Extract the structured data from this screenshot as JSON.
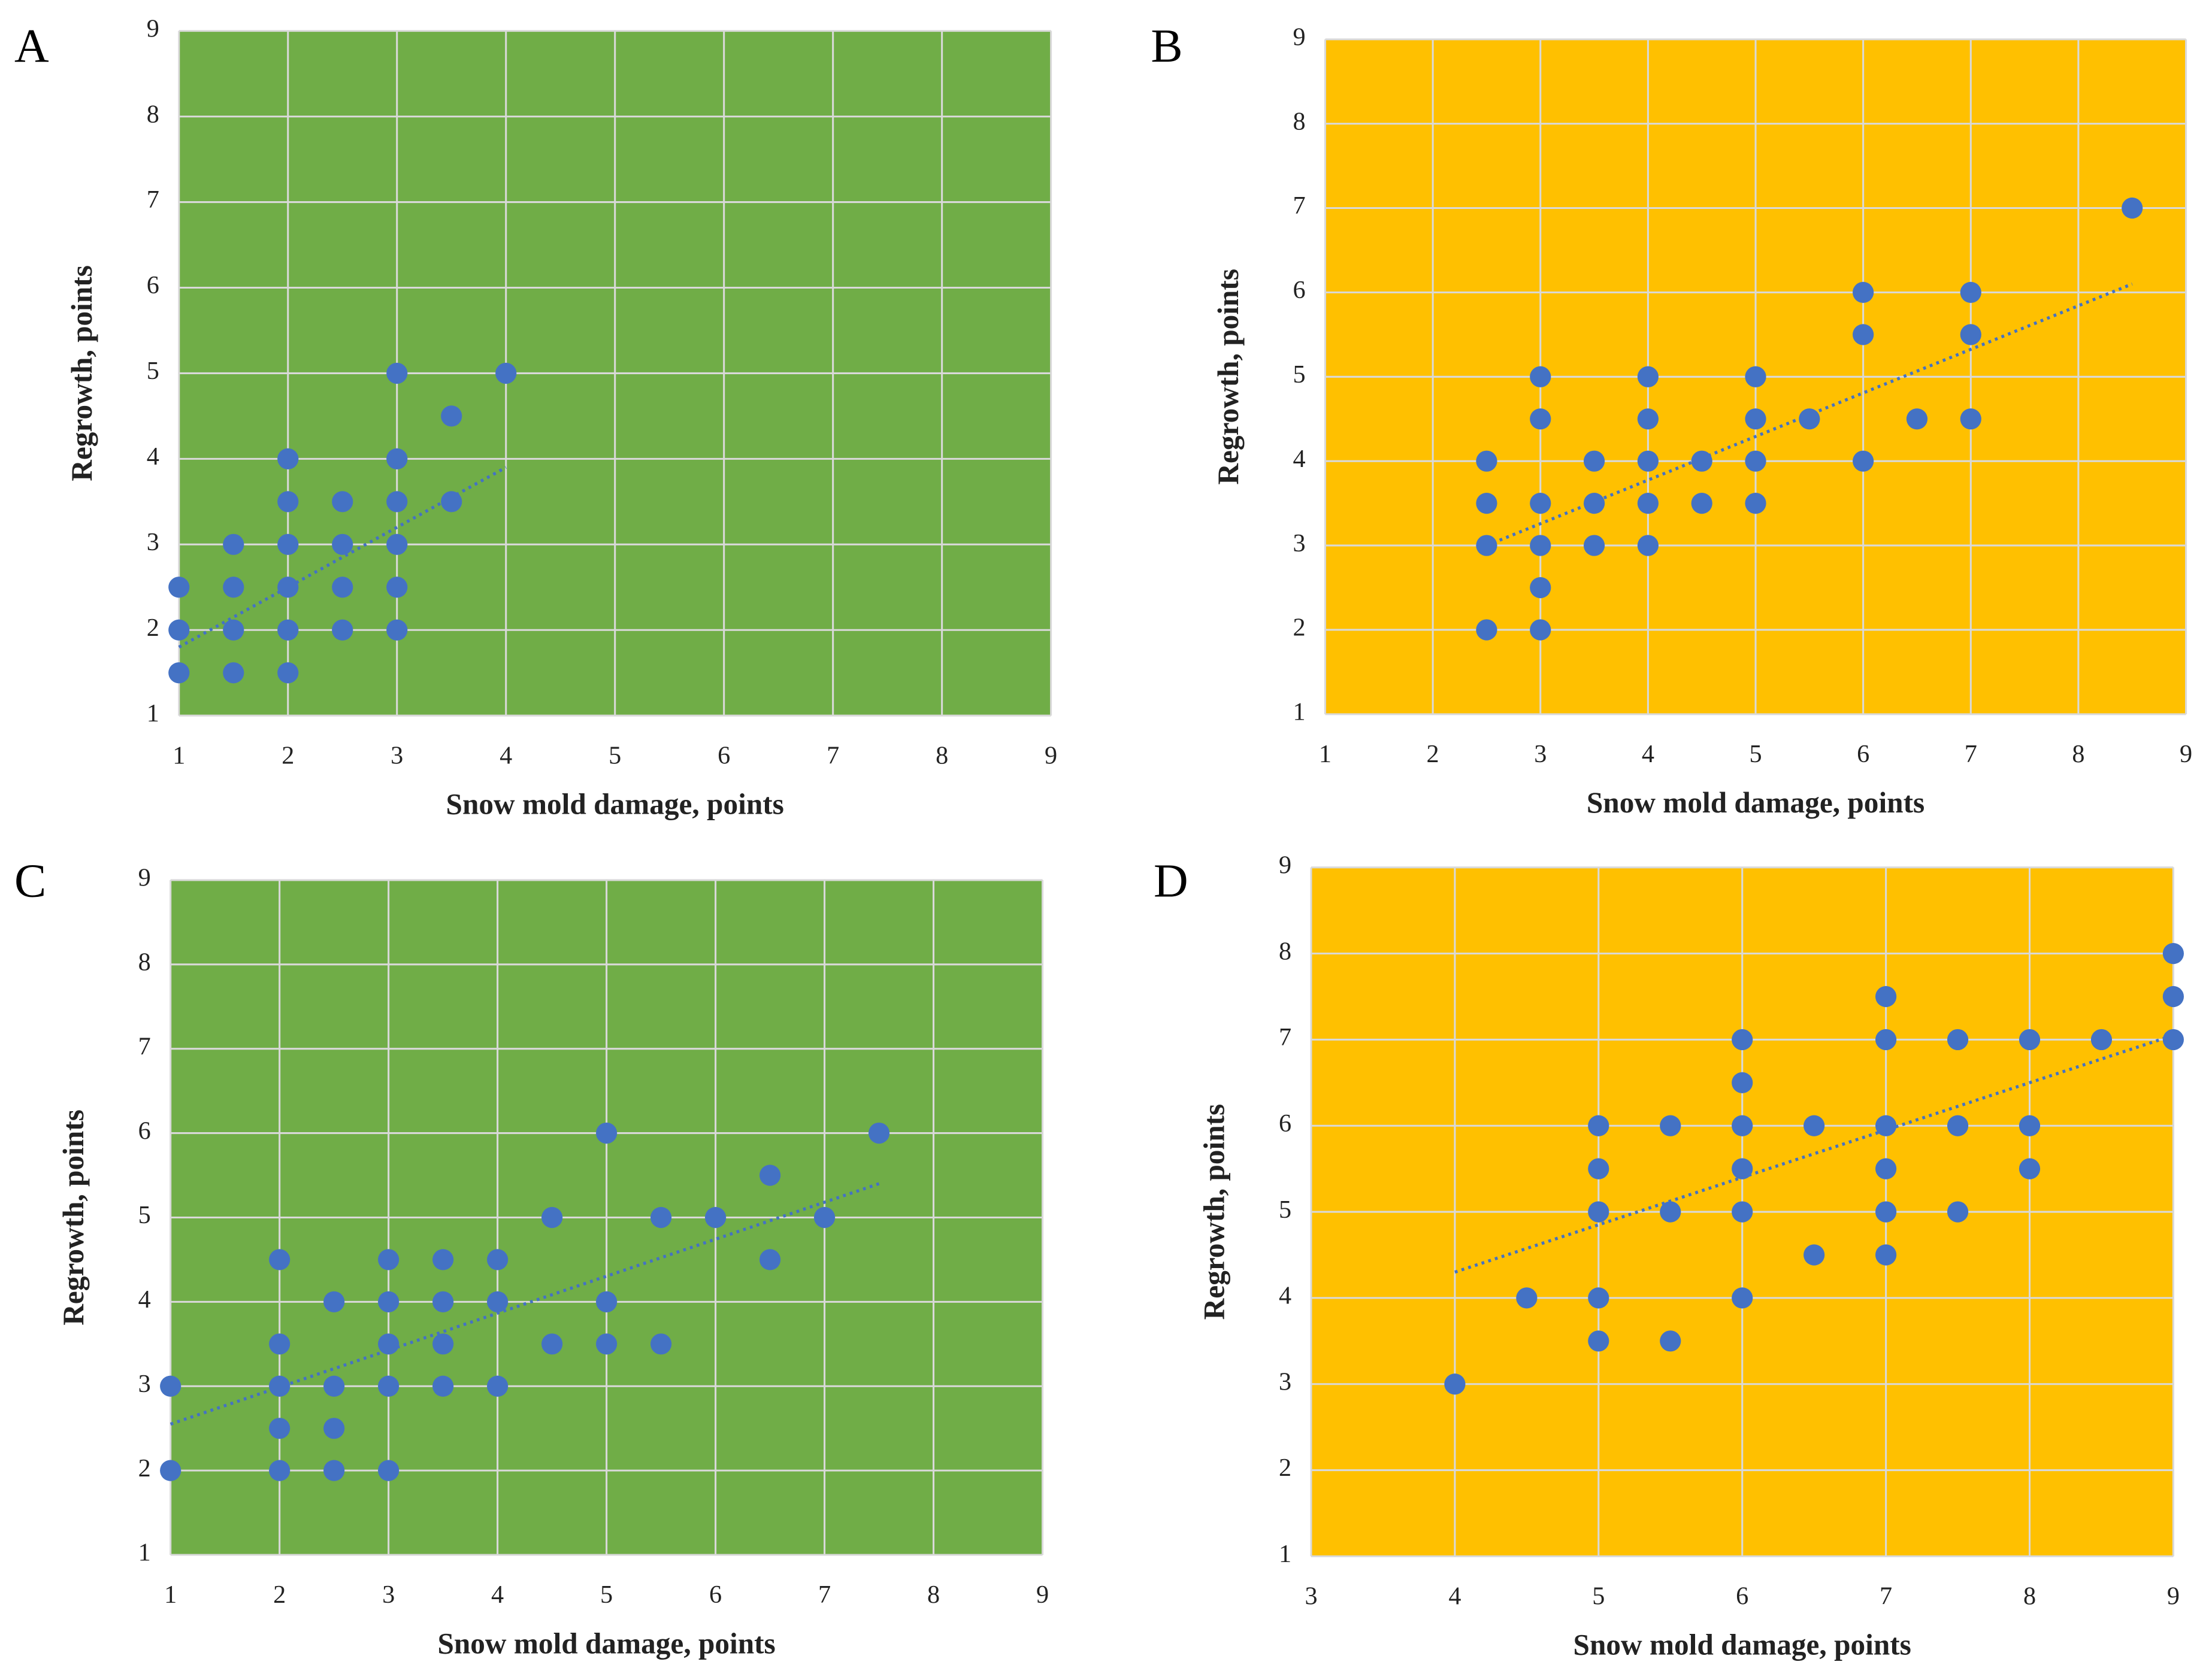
{
  "chart_data": [
    {
      "type": "scatter",
      "panel": "A",
      "xlabel": "Snow mold damage, points",
      "ylabel": "Regrowth, points",
      "background": "#70ad47",
      "grid": true,
      "xlim": [
        1,
        9
      ],
      "ylim": [
        1,
        9
      ],
      "xticks": [
        1,
        2,
        3,
        4,
        5,
        6,
        7,
        8,
        9
      ],
      "yticks": [
        1,
        2,
        3,
        4,
        5,
        6,
        7,
        8,
        9
      ],
      "series": [
        {
          "color": "#4472c4",
          "x": [
            1,
            1,
            1,
            1.5,
            1.5,
            1.5,
            1.5,
            2,
            2,
            2,
            2,
            2,
            2,
            2.5,
            2.5,
            2.5,
            2.5,
            3,
            3,
            3,
            3,
            3,
            3,
            3.5,
            3.5,
            4
          ],
          "values": [
            2.5,
            2,
            1.5,
            3,
            2.5,
            2,
            1.5,
            4,
            3.5,
            3,
            2.5,
            2,
            1.5,
            3.5,
            3,
            2.5,
            2,
            5,
            4,
            3.5,
            3,
            2.5,
            2,
            4.5,
            3.5,
            5
          ]
        }
      ],
      "trend": {
        "color": "#4472c4",
        "x": [
          1,
          4
        ],
        "values": [
          1.8,
          3.9
        ]
      }
    },
    {
      "type": "scatter",
      "panel": "B",
      "xlabel": "Snow mold damage, points",
      "ylabel": "Regrowth, points",
      "background": "#ffc000",
      "grid": true,
      "xlim": [
        1,
        9
      ],
      "ylim": [
        1,
        9
      ],
      "xticks": [
        1,
        2,
        3,
        4,
        5,
        6,
        7,
        8,
        9
      ],
      "yticks": [
        1,
        2,
        3,
        4,
        5,
        6,
        7,
        8,
        9
      ],
      "series": [
        {
          "color": "#4472c4",
          "x": [
            2.5,
            2.5,
            2.5,
            2.5,
            3,
            3,
            3,
            3,
            3,
            3,
            3.5,
            3.5,
            3.5,
            4,
            4,
            4,
            4,
            4,
            4.5,
            4.5,
            5,
            5,
            5,
            5,
            5.5,
            6,
            6,
            6,
            6.5,
            7,
            7,
            7,
            8.5
          ],
          "values": [
            4,
            3.5,
            3,
            2,
            5,
            4.5,
            3.5,
            3,
            2.5,
            2,
            4,
            3.5,
            3,
            5,
            4.5,
            4,
            3.5,
            3,
            4,
            3.5,
            5,
            4.5,
            4,
            3.5,
            4.5,
            6,
            5.5,
            4,
            4.5,
            6,
            5.5,
            4.5,
            7
          ]
        }
      ],
      "trend": {
        "color": "#4472c4",
        "x": [
          2.5,
          8.5
        ],
        "values": [
          3,
          6.1
        ]
      }
    },
    {
      "type": "scatter",
      "panel": "C",
      "xlabel": "Snow mold damage, points",
      "ylabel": "Regrowth, points",
      "background": "#70ad47",
      "grid": true,
      "xlim": [
        1,
        9
      ],
      "ylim": [
        1,
        9
      ],
      "xticks": [
        1,
        2,
        3,
        4,
        5,
        6,
        7,
        8,
        9
      ],
      "yticks": [
        1,
        2,
        3,
        4,
        5,
        6,
        7,
        8,
        9
      ],
      "series": [
        {
          "color": "#4472c4",
          "x": [
            1,
            1,
            2,
            2,
            2,
            2,
            2,
            2.5,
            2.5,
            2.5,
            2.5,
            3,
            3,
            3,
            3,
            3,
            3.5,
            3.5,
            3.5,
            3.5,
            4,
            4,
            4,
            4.5,
            4.5,
            5,
            5,
            5,
            5.5,
            5.5,
            6,
            6.5,
            6.5,
            7,
            7.5
          ],
          "values": [
            3,
            2,
            4.5,
            3.5,
            3,
            2.5,
            2,
            4,
            3,
            2.5,
            2,
            4.5,
            4,
            3.5,
            3,
            2,
            4.5,
            4,
            3.5,
            3,
            4.5,
            4,
            3,
            5,
            3.5,
            6,
            4,
            3.5,
            5,
            3.5,
            5,
            5.5,
            4.5,
            5,
            6
          ]
        }
      ],
      "trend": {
        "color": "#4472c4",
        "x": [
          1,
          7.5
        ],
        "values": [
          2.55,
          5.4
        ]
      }
    },
    {
      "type": "scatter",
      "panel": "D",
      "xlabel": "Snow mold damage, points",
      "ylabel": "Regrowth, points",
      "background": "#ffc000",
      "grid": true,
      "xlim": [
        3,
        9
      ],
      "ylim": [
        1,
        9
      ],
      "xticks": [
        3,
        4,
        5,
        6,
        7,
        8,
        9
      ],
      "yticks": [
        1,
        2,
        3,
        4,
        5,
        6,
        7,
        8,
        9
      ],
      "series": [
        {
          "color": "#4472c4",
          "x": [
            4,
            4.5,
            5,
            5,
            5,
            5,
            5,
            5.5,
            5.5,
            5.5,
            6,
            6,
            6,
            6,
            6,
            6,
            6.5,
            6.5,
            7,
            7,
            7,
            7,
            7,
            7,
            7.5,
            7.5,
            7.5,
            8,
            8,
            8,
            8.5,
            9,
            9,
            9
          ],
          "values": [
            3,
            4,
            6,
            5.5,
            5,
            4,
            3.5,
            6,
            5,
            3.5,
            7,
            6.5,
            6,
            5.5,
            5,
            4,
            6,
            4.5,
            7.5,
            7,
            6,
            5.5,
            5,
            4.5,
            7,
            6,
            5,
            7,
            6,
            5.5,
            7,
            8,
            7.5,
            7
          ]
        }
      ],
      "trend": {
        "color": "#4472c4",
        "x": [
          4,
          9
        ],
        "values": [
          4.3,
          7.05
        ]
      }
    }
  ]
}
